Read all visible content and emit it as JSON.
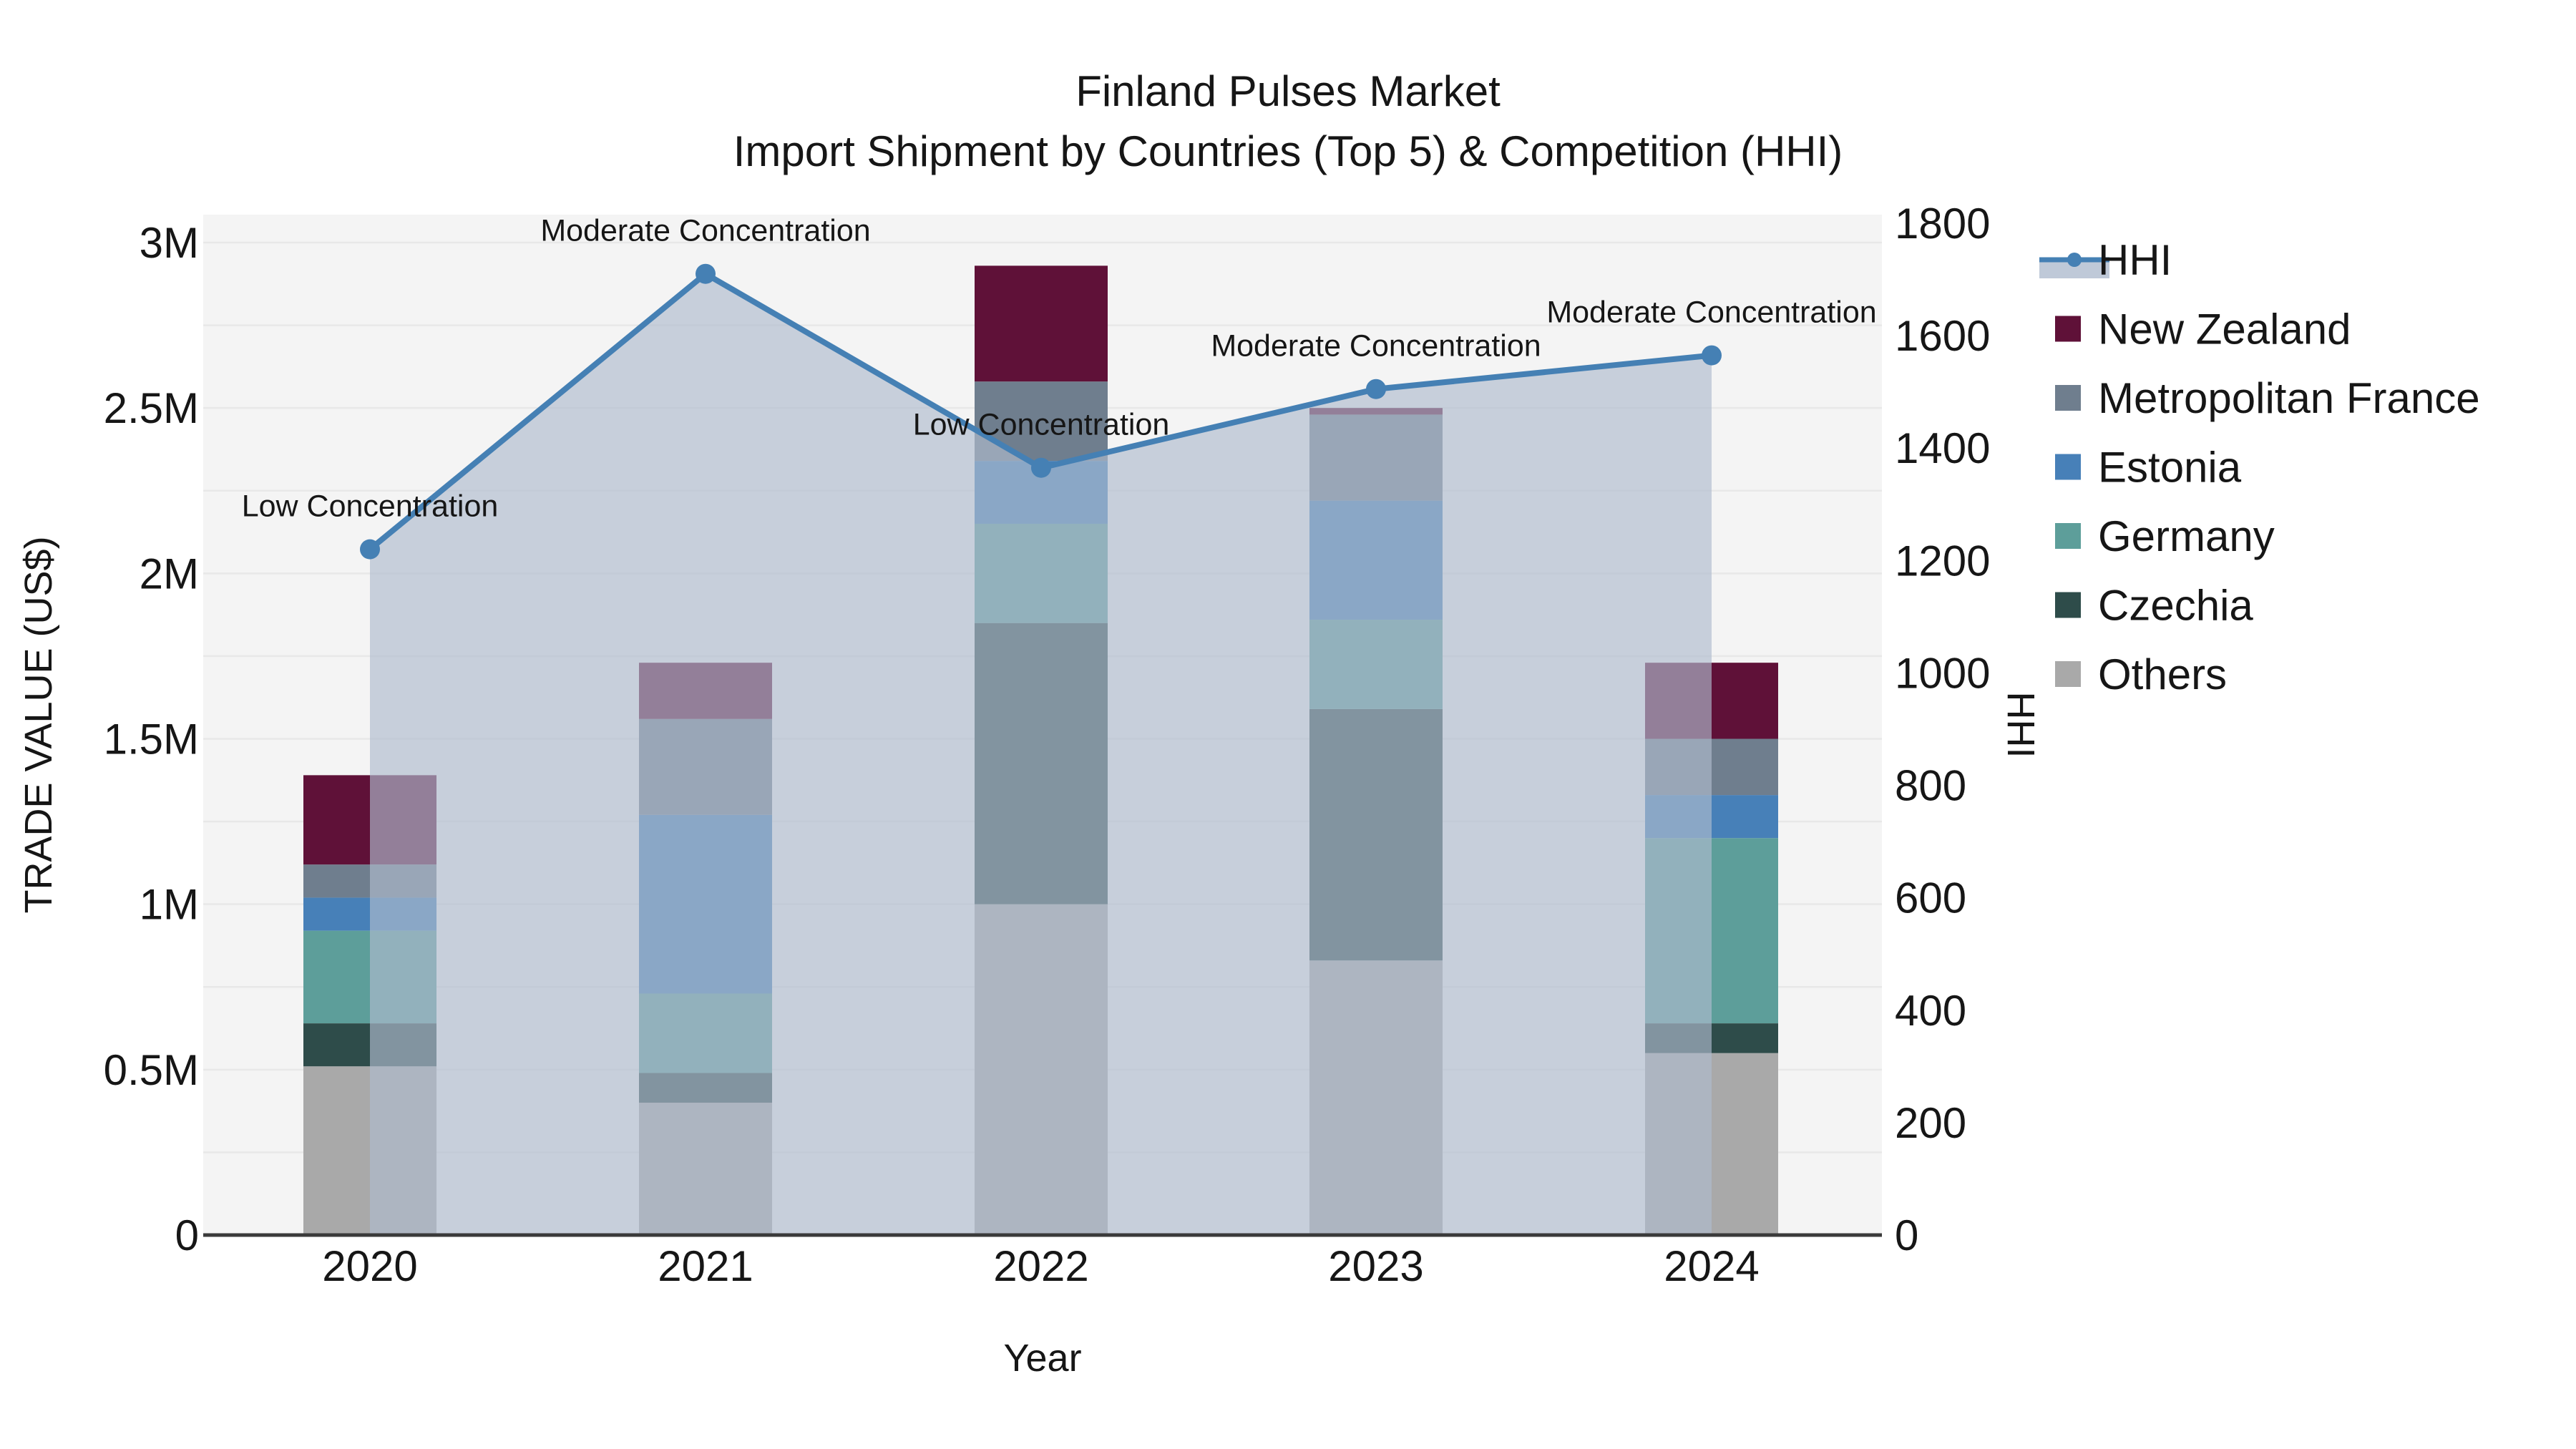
{
  "chart_data": {
    "type": "bar",
    "title": "Finland Pulses Market",
    "subtitle": "Import Shipment by Countries (Top 5) & Competition (HHI)",
    "xlabel": "Year",
    "ylabel_left": "TRADE VALUE (US$)",
    "ylabel_right": "HHI",
    "categories": [
      "2020",
      "2021",
      "2022",
      "2023",
      "2024"
    ],
    "values_unit": "M US$",
    "stack_note": "stacked bottom-to-top: Others, Czechia, Germany, Estonia, Metropolitan France, New Zealand",
    "series": [
      {
        "name": "New Zealand",
        "color": "#5f1138",
        "values": [
          0.27,
          0.17,
          0.35,
          0.02,
          0.23
        ]
      },
      {
        "name": "Metropolitan France",
        "color": "#6f7e8e",
        "values": [
          0.1,
          0.29,
          0.24,
          0.26,
          0.17
        ]
      },
      {
        "name": "Estonia",
        "color": "#4780b8",
        "values": [
          0.1,
          0.54,
          0.19,
          0.36,
          0.13
        ]
      },
      {
        "name": "Germany",
        "color": "#5d9e9a",
        "values": [
          0.28,
          0.24,
          0.3,
          0.27,
          0.56
        ]
      },
      {
        "name": "Czechia",
        "color": "#2e4c4a",
        "values": [
          0.13,
          0.09,
          0.85,
          0.76,
          0.09
        ]
      },
      {
        "name": "Others",
        "color": "#a9a9a9",
        "values": [
          0.51,
          0.4,
          1.0,
          0.83,
          0.55
        ]
      }
    ],
    "line_series": {
      "name": "HHI",
      "color": "#4580b4",
      "area_fill": "rgba(175,188,206,0.65)",
      "values": [
        1220,
        1710,
        1365,
        1505,
        1565
      ]
    },
    "annotations": [
      {
        "year": "2020",
        "text": "Low Concentration"
      },
      {
        "year": "2021",
        "text": "Moderate Concentration"
      },
      {
        "year": "2022",
        "text": "Low Concentration"
      },
      {
        "year": "2023",
        "text": "Moderate Concentration"
      },
      {
        "year": "2024",
        "text": "Moderate Concentration"
      }
    ],
    "y_left": {
      "min": 0,
      "max": 3,
      "grid_step_m": 0.25,
      "ticks": [
        "0",
        "0.5M",
        "1M",
        "1.5M",
        "2M",
        "2.5M",
        "3M"
      ],
      "tick_values_m": [
        0,
        0.5,
        1,
        1.5,
        2,
        2.5,
        3
      ]
    },
    "y_right": {
      "min": 0,
      "max": 1800,
      "ticks": [
        "0",
        "200",
        "400",
        "600",
        "800",
        "1000",
        "1200",
        "1400",
        "1600",
        "1800"
      ],
      "tick_values": [
        0,
        200,
        400,
        600,
        800,
        1000,
        1200,
        1400,
        1600,
        1800
      ]
    },
    "legend": {
      "position": "right",
      "entries": [
        "HHI",
        "New Zealand",
        "Metropolitan France",
        "Estonia",
        "Germany",
        "Czechia",
        "Others"
      ]
    },
    "grid": "horizontal-only",
    "plot_background": "#f4f4f4",
    "gridline_color": "#e8e8e8",
    "axisline_color": "#3a3a3a"
  }
}
